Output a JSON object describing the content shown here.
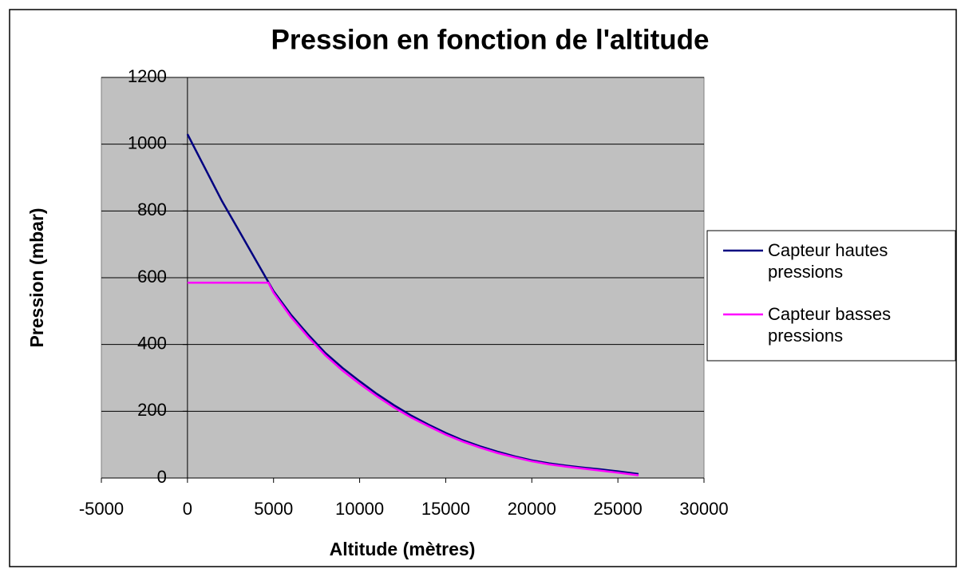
{
  "chart_data": {
    "type": "line",
    "title": "Pression en fonction de l'altitude",
    "x_label": "Altitude (mètres)",
    "y_label": "Pression (mbar)",
    "xlim": [
      -5000,
      30000
    ],
    "xticks": [
      -5000,
      0,
      5000,
      10000,
      15000,
      20000,
      25000,
      30000
    ],
    "ylim": [
      0,
      1200
    ],
    "yticks": [
      0,
      200,
      400,
      600,
      800,
      1000,
      1200
    ],
    "grid": true,
    "legend": "right",
    "series": [
      {
        "name": "Capteur hautes pressions",
        "color": "#000080",
        "x": [
          0,
          1000,
          2000,
          3000,
          4000,
          5000,
          6000,
          7000,
          8000,
          9000,
          10000,
          11000,
          12000,
          13000,
          14000,
          15000,
          16000,
          17000,
          18000,
          19000,
          20000,
          21000,
          22000,
          23000,
          24000,
          25000,
          26200
        ],
        "values": [
          1030,
          930,
          830,
          740,
          650,
          560,
          490,
          430,
          375,
          330,
          290,
          252,
          218,
          187,
          160,
          135,
          113,
          95,
          79,
          65,
          53,
          44,
          37,
          31,
          26,
          20,
          12
        ]
      },
      {
        "name": "Capteur basses pressions",
        "color": "#ff00ff",
        "x": [
          0,
          2000,
          4700,
          5000,
          6000,
          7000,
          8000,
          9000,
          10000,
          11000,
          12000,
          13000,
          14000,
          15000,
          16000,
          17000,
          18000,
          19000,
          20000,
          21000,
          22000,
          23000,
          24000,
          25000,
          26200
        ],
        "values": [
          585,
          585,
          585,
          555,
          483,
          423,
          368,
          322,
          282,
          245,
          211,
          181,
          155,
          130,
          109,
          91,
          75,
          62,
          50,
          41,
          34,
          28,
          22,
          16,
          8
        ]
      }
    ]
  }
}
